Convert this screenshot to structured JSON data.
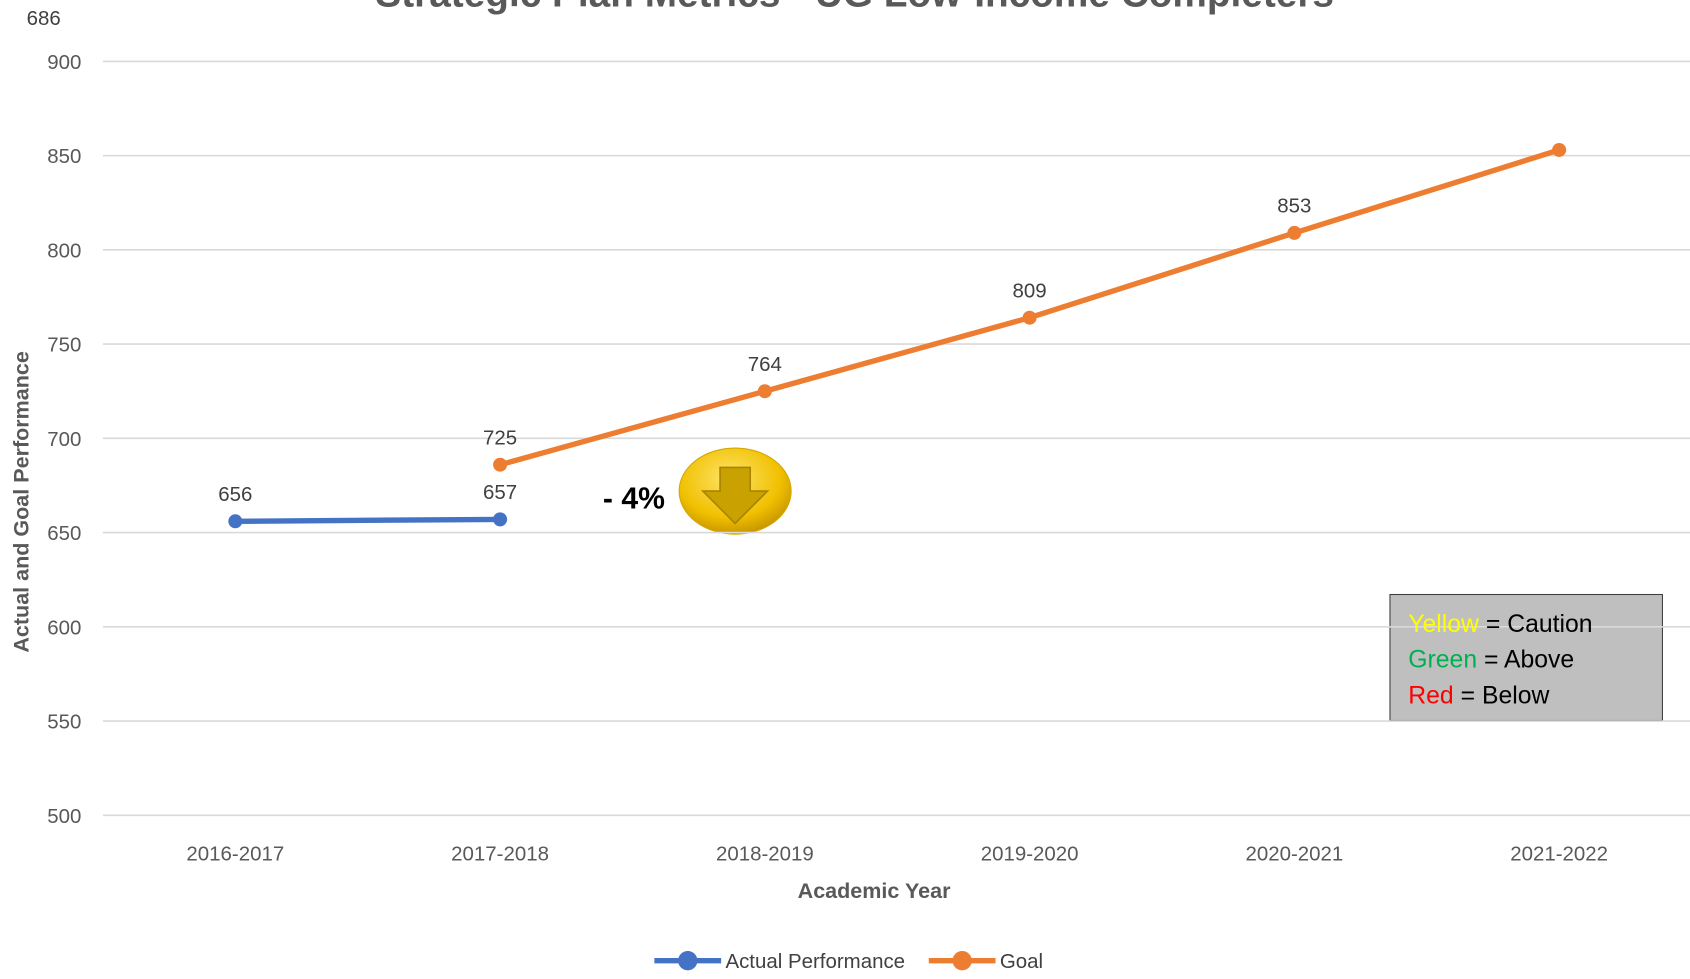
{
  "chart_data": {
    "type": "line",
    "title": "Strategic Plan Metrics - UG Low-Income Completers",
    "x_label": "Academic Year",
    "y_label": "Actual and Goal Performance",
    "categories": [
      "2016-2017",
      "2017-2018",
      "2018-2019",
      "2019-2020",
      "2020-2021",
      "2021-2022"
    ],
    "series": [
      {
        "name": "Actual Performance",
        "color": "#4472c4",
        "values": [
          656,
          657,
          null,
          null,
          null,
          null
        ]
      },
      {
        "name": "Goal",
        "color": "#ed7d31",
        "values": [
          null,
          686,
          725,
          764,
          809,
          853
        ]
      }
    ],
    "ylim": [
      500,
      900
    ],
    "yticks": [
      500,
      550,
      600,
      650,
      700,
      750,
      800,
      850,
      900
    ],
    "grid": true,
    "legend": "bottom",
    "annotation": "- 4%",
    "status_key": [
      {
        "word": "Yellow",
        "color": "#ffff00",
        "meaning": "= Caution"
      },
      {
        "word": "Green",
        "color": "#00b050",
        "meaning": "= Above"
      },
      {
        "word": "Red",
        "color": "#ff0000",
        "meaning": "= Below"
      }
    ]
  }
}
